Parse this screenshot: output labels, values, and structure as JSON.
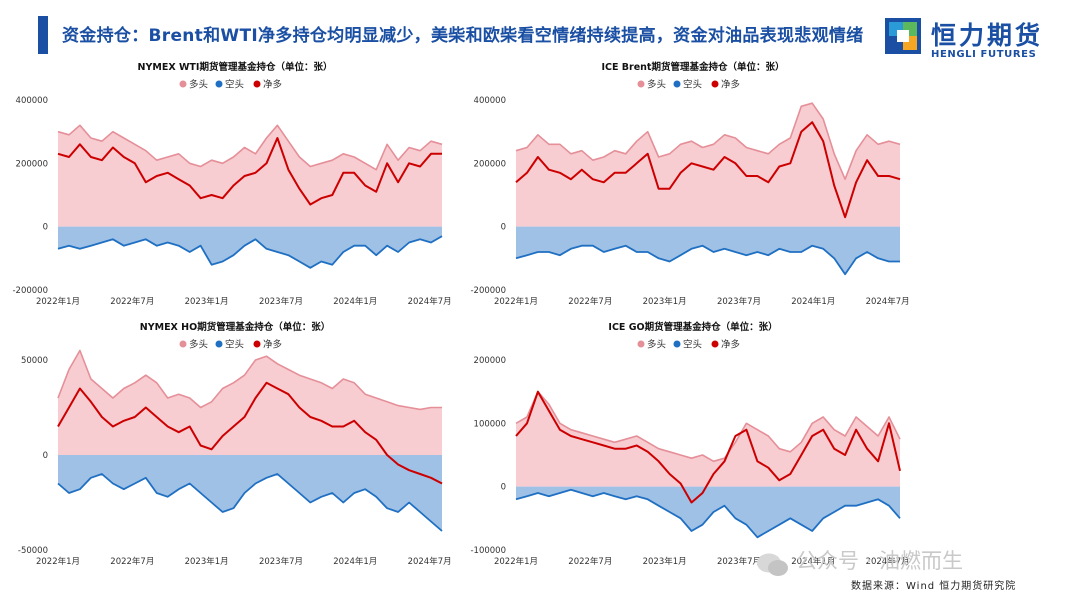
{
  "header": {
    "title": "资金持仓：Brent和WTI净多持仓均明显减少，美柴和欧柴看空情绪持续提高，资金对油品表现悲观情绪",
    "logo_cn": "恒力期货",
    "logo_en": "HENGLI FUTURES"
  },
  "footer": {
    "source": "数据来源：Wind 恒力期货研究院",
    "watermark": "公众号 · 油燃而生"
  },
  "colors": {
    "long": "#e58f98",
    "long_fill": "#f7cdd2",
    "short": "#1f6fc2",
    "short_fill": "#9fc1e6",
    "net": "#cc0000",
    "brand": "#1a4fa3"
  },
  "chart_data": [
    {
      "type": "area",
      "title": "NYMEX WTI期货管理基金持仓（单位：张）",
      "legend": [
        "多头",
        "空头",
        "净多"
      ],
      "ylim": [
        -200000,
        400000
      ],
      "yticks": [
        400000,
        200000,
        0,
        -200000
      ],
      "xticks": [
        "2022年1月",
        "2022年7月",
        "2023年1月",
        "2023年7月",
        "2024年1月",
        "2024年7月"
      ],
      "x_start": "2022-01",
      "x_end": "2024-08",
      "series": [
        {
          "name": "多头",
          "values": [
            300000,
            290000,
            320000,
            280000,
            270000,
            300000,
            280000,
            260000,
            240000,
            210000,
            220000,
            230000,
            200000,
            190000,
            210000,
            200000,
            220000,
            250000,
            230000,
            280000,
            320000,
            270000,
            220000,
            190000,
            200000,
            210000,
            230000,
            220000,
            200000,
            180000,
            260000,
            210000,
            250000,
            240000,
            270000,
            260000
          ]
        },
        {
          "name": "空头",
          "values": [
            -70000,
            -60000,
            -70000,
            -60000,
            -50000,
            -40000,
            -60000,
            -50000,
            -40000,
            -60000,
            -50000,
            -60000,
            -80000,
            -60000,
            -120000,
            -110000,
            -90000,
            -60000,
            -40000,
            -70000,
            -80000,
            -90000,
            -110000,
            -130000,
            -110000,
            -120000,
            -80000,
            -60000,
            -60000,
            -90000,
            -60000,
            -80000,
            -50000,
            -40000,
            -50000,
            -30000
          ]
        },
        {
          "name": "净多",
          "values": [
            230000,
            220000,
            260000,
            220000,
            210000,
            250000,
            220000,
            200000,
            140000,
            160000,
            170000,
            150000,
            130000,
            90000,
            100000,
            90000,
            130000,
            160000,
            170000,
            200000,
            280000,
            180000,
            120000,
            70000,
            90000,
            100000,
            170000,
            170000,
            130000,
            110000,
            200000,
            140000,
            200000,
            190000,
            230000,
            230000
          ]
        }
      ]
    },
    {
      "type": "area",
      "title": "ICE Brent期货管理基金持仓（单位：张）",
      "legend": [
        "多头",
        "空头",
        "净多"
      ],
      "ylim": [
        -200000,
        400000
      ],
      "yticks": [
        400000,
        200000,
        0,
        -200000
      ],
      "xticks": [
        "2022年1月",
        "2022年7月",
        "2023年1月",
        "2023年7月",
        "2024年1月",
        "2024年7月"
      ],
      "x_start": "2022-01",
      "x_end": "2024-08",
      "series": [
        {
          "name": "多头",
          "values": [
            240000,
            250000,
            290000,
            260000,
            260000,
            230000,
            240000,
            210000,
            220000,
            240000,
            230000,
            270000,
            300000,
            220000,
            230000,
            260000,
            270000,
            250000,
            260000,
            290000,
            280000,
            250000,
            240000,
            230000,
            260000,
            280000,
            380000,
            390000,
            340000,
            230000,
            150000,
            240000,
            290000,
            260000,
            270000,
            260000
          ]
        },
        {
          "name": "空头",
          "values": [
            -100000,
            -90000,
            -80000,
            -80000,
            -90000,
            -70000,
            -60000,
            -60000,
            -80000,
            -70000,
            -60000,
            -80000,
            -80000,
            -100000,
            -110000,
            -90000,
            -70000,
            -60000,
            -80000,
            -70000,
            -80000,
            -90000,
            -80000,
            -90000,
            -70000,
            -80000,
            -80000,
            -60000,
            -70000,
            -100000,
            -150000,
            -100000,
            -80000,
            -100000,
            -110000,
            -110000
          ]
        },
        {
          "name": "净多",
          "values": [
            140000,
            170000,
            220000,
            180000,
            170000,
            150000,
            180000,
            150000,
            140000,
            170000,
            170000,
            200000,
            230000,
            120000,
            120000,
            170000,
            200000,
            190000,
            180000,
            220000,
            200000,
            160000,
            160000,
            140000,
            190000,
            200000,
            300000,
            330000,
            270000,
            130000,
            30000,
            140000,
            210000,
            160000,
            160000,
            150000
          ]
        }
      ]
    },
    {
      "type": "area",
      "title": "NYMEX HO期货管理基金持仓（单位：张）",
      "legend": [
        "多头",
        "空头",
        "净多"
      ],
      "ylim": [
        -50000,
        50000
      ],
      "yticks": [
        50000,
        0,
        -50000
      ],
      "xticks": [
        "2022年1月",
        "2022年7月",
        "2023年1月",
        "2023年7月",
        "2024年1月",
        "2024年7月"
      ],
      "x_start": "2022-01",
      "x_end": "2024-08",
      "series": [
        {
          "name": "多头",
          "values": [
            30000,
            45000,
            55000,
            40000,
            35000,
            30000,
            35000,
            38000,
            42000,
            38000,
            30000,
            32000,
            30000,
            25000,
            28000,
            35000,
            38000,
            42000,
            50000,
            52000,
            48000,
            45000,
            42000,
            40000,
            38000,
            35000,
            40000,
            38000,
            32000,
            30000,
            28000,
            26000,
            25000,
            24000,
            25000,
            25000
          ]
        },
        {
          "name": "空头",
          "values": [
            -15000,
            -20000,
            -18000,
            -12000,
            -10000,
            -15000,
            -18000,
            -15000,
            -12000,
            -20000,
            -22000,
            -18000,
            -15000,
            -20000,
            -25000,
            -30000,
            -28000,
            -20000,
            -15000,
            -12000,
            -10000,
            -15000,
            -20000,
            -25000,
            -22000,
            -20000,
            -25000,
            -20000,
            -18000,
            -22000,
            -28000,
            -30000,
            -25000,
            -30000,
            -35000,
            -40000
          ]
        },
        {
          "name": "净多",
          "values": [
            15000,
            25000,
            35000,
            28000,
            20000,
            15000,
            18000,
            20000,
            25000,
            20000,
            15000,
            12000,
            15000,
            5000,
            3000,
            10000,
            15000,
            20000,
            30000,
            38000,
            35000,
            32000,
            25000,
            20000,
            18000,
            15000,
            15000,
            18000,
            12000,
            8000,
            0,
            -5000,
            -8000,
            -10000,
            -12000,
            -15000
          ]
        }
      ]
    },
    {
      "type": "area",
      "title": "ICE GO期货管理基金持仓（单位：张）",
      "legend": [
        "多头",
        "空头",
        "净多"
      ],
      "ylim": [
        -100000,
        200000
      ],
      "yticks": [
        200000,
        100000,
        0,
        -100000
      ],
      "xticks": [
        "2022年1月",
        "2022年7月",
        "2023年1月",
        "2023年7月",
        "2024年1月",
        "2024年7月"
      ],
      "x_start": "2022-01",
      "x_end": "2024-08",
      "series": [
        {
          "name": "多头",
          "values": [
            100000,
            110000,
            150000,
            130000,
            100000,
            90000,
            85000,
            80000,
            75000,
            70000,
            75000,
            80000,
            70000,
            60000,
            55000,
            50000,
            45000,
            50000,
            40000,
            45000,
            70000,
            100000,
            90000,
            80000,
            60000,
            55000,
            70000,
            100000,
            110000,
            90000,
            80000,
            110000,
            95000,
            80000,
            110000,
            75000
          ]
        },
        {
          "name": "空头",
          "values": [
            -20000,
            -15000,
            -10000,
            -15000,
            -10000,
            -5000,
            -10000,
            -15000,
            -10000,
            -15000,
            -20000,
            -15000,
            -20000,
            -30000,
            -40000,
            -50000,
            -70000,
            -60000,
            -40000,
            -30000,
            -50000,
            -60000,
            -80000,
            -70000,
            -60000,
            -50000,
            -60000,
            -70000,
            -50000,
            -40000,
            -30000,
            -30000,
            -25000,
            -20000,
            -30000,
            -50000
          ]
        },
        {
          "name": "净多",
          "values": [
            80000,
            100000,
            150000,
            120000,
            90000,
            80000,
            75000,
            70000,
            65000,
            60000,
            60000,
            65000,
            55000,
            40000,
            20000,
            5000,
            -25000,
            -10000,
            20000,
            40000,
            80000,
            90000,
            40000,
            30000,
            10000,
            20000,
            50000,
            80000,
            90000,
            60000,
            50000,
            90000,
            60000,
            40000,
            100000,
            25000
          ]
        }
      ]
    }
  ]
}
